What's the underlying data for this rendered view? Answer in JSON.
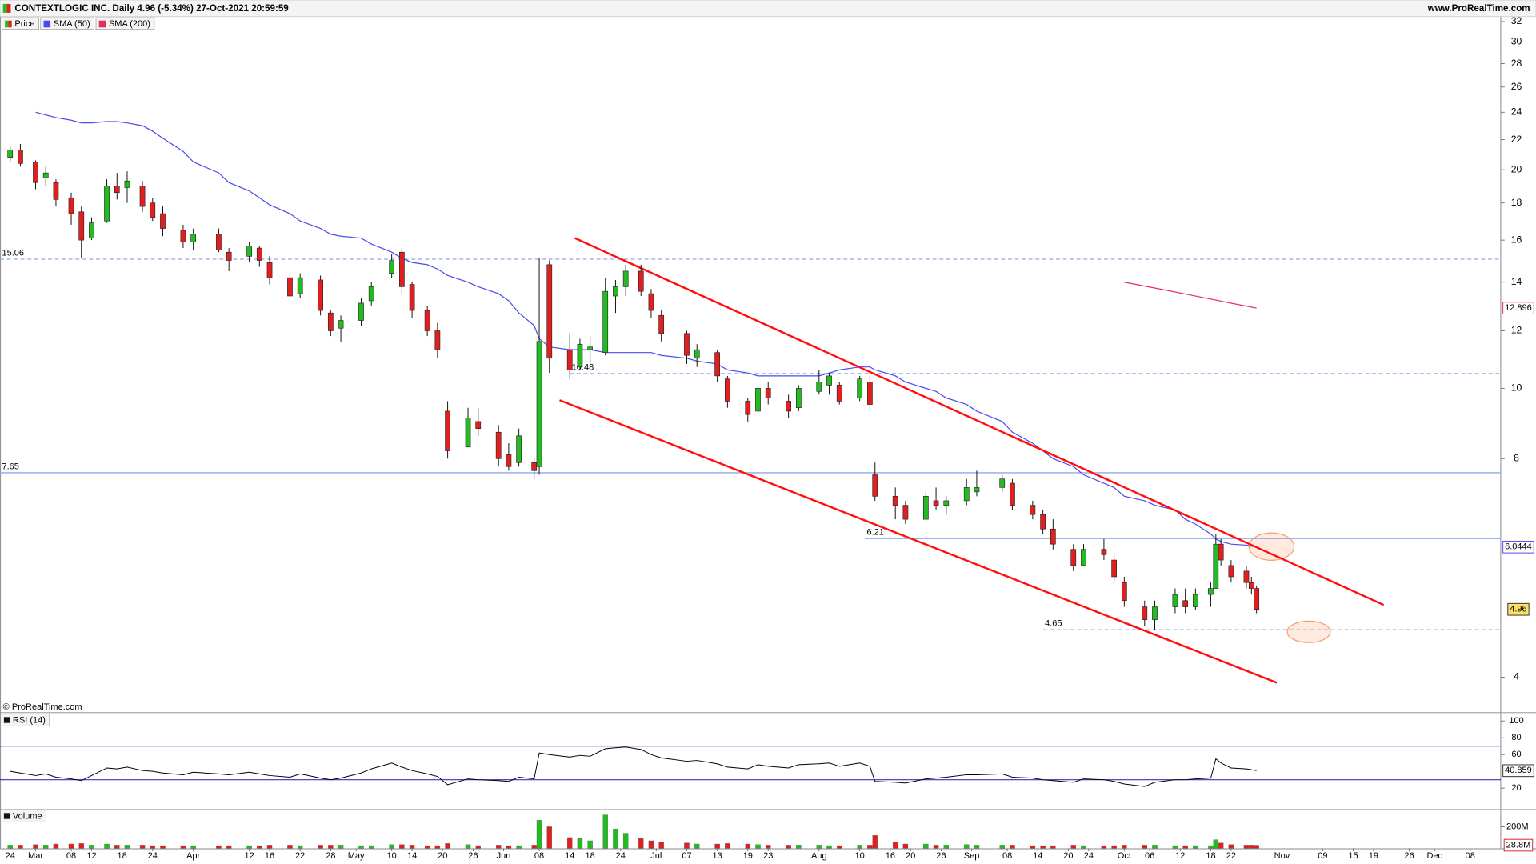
{
  "chart_data": {
    "type": "candlestick",
    "title": "CONTEXTLOGIC INC. Daily 4.96 (-5.34%) 27-Oct-2021 20:59:59",
    "source": "www.ProRealTime.com",
    "watermark": "© ProRealTime.com",
    "name": "Price",
    "up_color": "#22bb22",
    "down_color": "#e02020",
    "log_scale": true,
    "x": [
      "2021-02-24",
      "2021-02-26",
      "2021-03-01",
      "2021-03-03",
      "2021-03-05",
      "2021-03-08",
      "2021-03-10",
      "2021-03-12",
      "2021-03-15",
      "2021-03-17",
      "2021-03-19",
      "2021-03-22",
      "2021-03-24",
      "2021-03-26",
      "2021-03-30",
      "2021-04-01",
      "2021-04-06",
      "2021-04-08",
      "2021-04-12",
      "2021-04-14",
      "2021-04-16",
      "2021-04-20",
      "2021-04-22",
      "2021-04-26",
      "2021-04-28",
      "2021-04-30",
      "2021-05-04",
      "2021-05-06",
      "2021-05-10",
      "2021-05-12",
      "2021-05-14",
      "2021-05-17",
      "2021-05-19",
      "2021-05-21",
      "2021-05-25",
      "2021-05-27",
      "2021-05-31",
      "2021-06-02",
      "2021-06-04",
      "2021-06-07",
      "2021-06-08",
      "2021-06-10",
      "2021-06-14",
      "2021-06-16",
      "2021-06-18",
      "2021-06-21",
      "2021-06-23",
      "2021-06-25",
      "2021-06-28",
      "2021-06-30",
      "2021-07-02",
      "2021-07-07",
      "2021-07-09",
      "2021-07-13",
      "2021-07-15",
      "2021-07-19",
      "2021-07-21",
      "2021-07-23",
      "2021-07-27",
      "2021-07-29",
      "2021-08-02",
      "2021-08-04",
      "2021-08-06",
      "2021-08-10",
      "2021-08-12",
      "2021-08-13",
      "2021-08-17",
      "2021-08-19",
      "2021-08-23",
      "2021-08-25",
      "2021-08-27",
      "2021-08-31",
      "2021-09-02",
      "2021-09-07",
      "2021-09-09",
      "2021-09-13",
      "2021-09-15",
      "2021-09-17",
      "2021-09-21",
      "2021-09-23",
      "2021-09-27",
      "2021-09-29",
      "2021-10-01",
      "2021-10-05",
      "2021-10-07",
      "2021-10-11",
      "2021-10-13",
      "2021-10-15",
      "2021-10-18",
      "2021-10-19",
      "2021-10-20",
      "2021-10-22",
      "2021-10-25",
      "2021-10-26",
      "2021-10-27"
    ],
    "open": [
      20.8,
      21.3,
      20.5,
      19.5,
      19.2,
      18.3,
      17.5,
      16.1,
      17.0,
      19.0,
      18.9,
      19.0,
      18.0,
      17.4,
      16.5,
      15.9,
      16.3,
      15.4,
      15.2,
      15.6,
      14.9,
      14.2,
      13.5,
      14.1,
      12.7,
      12.1,
      12.4,
      13.2,
      14.4,
      15.4,
      13.9,
      12.8,
      12.0,
      9.3,
      8.3,
      9.0,
      8.7,
      8.1,
      7.9,
      7.9,
      7.8,
      14.8,
      11.3,
      10.7,
      11.3,
      11.2,
      13.4,
      13.8,
      14.5,
      13.5,
      12.6,
      11.9,
      11.0,
      11.2,
      10.3,
      9.6,
      9.3,
      10.0,
      9.6,
      9.4,
      9.9,
      10.1,
      10.1,
      9.7,
      10.2,
      7.6,
      7.1,
      6.9,
      6.6,
      7.0,
      6.9,
      7.0,
      7.2,
      7.3,
      7.4,
      6.9,
      6.7,
      6.4,
      6.0,
      5.7,
      6.0,
      5.8,
      5.4,
      5.0,
      4.8,
      5.0,
      5.1,
      5.0,
      5.2,
      5.3,
      6.1,
      5.7,
      5.6,
      5.4,
      5.3
    ],
    "high": [
      21.6,
      21.7,
      20.6,
      20.2,
      19.4,
      18.6,
      17.8,
      17.2,
      19.4,
      19.8,
      19.9,
      19.3,
      18.3,
      17.8,
      16.8,
      16.6,
      16.6,
      15.6,
      15.9,
      15.7,
      15.2,
      14.4,
      14.4,
      14.3,
      12.8,
      12.6,
      13.3,
      14.0,
      15.3,
      15.6,
      14.0,
      13.0,
      12.3,
      9.6,
      9.4,
      9.4,
      8.9,
      8.4,
      8.8,
      8.0,
      15.1,
      15.0,
      11.9,
      11.7,
      11.8,
      14.2,
      14.1,
      14.8,
      14.8,
      13.7,
      12.8,
      12.0,
      11.5,
      11.3,
      10.4,
      9.7,
      10.1,
      10.2,
      9.8,
      10.1,
      10.6,
      10.5,
      10.2,
      10.4,
      10.4,
      7.9,
      7.3,
      7.0,
      7.2,
      7.3,
      7.1,
      7.5,
      7.7,
      7.6,
      7.5,
      7.0,
      6.8,
      6.6,
      6.1,
      6.1,
      6.2,
      5.9,
      5.5,
      5.1,
      5.1,
      5.3,
      5.3,
      5.3,
      5.4,
      6.3,
      6.2,
      5.8,
      5.7,
      5.5,
      5.35
    ],
    "low": [
      20.5,
      20.2,
      18.8,
      19.0,
      17.8,
      16.8,
      15.1,
      16.0,
      16.9,
      18.2,
      18.0,
      17.5,
      17.0,
      16.2,
      15.6,
      15.5,
      15.4,
      14.5,
      14.9,
      14.7,
      13.9,
      13.1,
      13.3,
      12.6,
      11.8,
      11.6,
      12.2,
      13.0,
      14.2,
      13.5,
      12.5,
      11.8,
      11.0,
      8.0,
      8.3,
      8.6,
      7.8,
      7.7,
      7.8,
      7.5,
      7.6,
      10.5,
      10.3,
      10.6,
      10.8,
      11.1,
      12.7,
      13.4,
      13.4,
      12.5,
      11.6,
      10.8,
      10.7,
      10.2,
      9.4,
      9.0,
      9.2,
      9.5,
      9.1,
      9.3,
      9.8,
      9.8,
      9.5,
      9.6,
      9.3,
      7.0,
      6.6,
      6.5,
      6.6,
      6.8,
      6.7,
      6.9,
      7.1,
      7.2,
      6.8,
      6.6,
      6.3,
      6.0,
      5.6,
      5.7,
      5.8,
      5.4,
      5.0,
      4.7,
      4.65,
      4.9,
      4.9,
      4.95,
      5.0,
      5.3,
      5.7,
      5.4,
      5.3,
      5.2,
      4.9
    ],
    "close": [
      21.3,
      20.4,
      19.2,
      19.8,
      18.2,
      17.4,
      16.0,
      16.9,
      19.0,
      18.6,
      19.3,
      17.8,
      17.2,
      16.6,
      15.9,
      16.3,
      15.5,
      15.0,
      15.7,
      15.0,
      14.2,
      13.4,
      14.2,
      12.8,
      12.0,
      12.4,
      13.1,
      13.8,
      15.0,
      13.8,
      12.8,
      12.0,
      11.3,
      8.2,
      9.1,
      8.8,
      8.0,
      7.8,
      8.6,
      7.7,
      11.6,
      11.0,
      10.6,
      11.5,
      11.4,
      13.6,
      13.8,
      14.5,
      13.6,
      12.8,
      11.9,
      11.1,
      11.3,
      10.4,
      9.6,
      9.2,
      10.0,
      9.7,
      9.3,
      10.0,
      10.2,
      10.4,
      9.6,
      10.3,
      9.5,
      7.1,
      6.9,
      6.6,
      7.1,
      6.9,
      7.0,
      7.3,
      7.3,
      7.5,
      6.9,
      6.7,
      6.4,
      6.1,
      5.7,
      6.0,
      5.9,
      5.5,
      5.1,
      4.8,
      5.0,
      5.2,
      5.0,
      5.2,
      5.3,
      6.1,
      5.8,
      5.5,
      5.4,
      5.3,
      4.96
    ],
    "series": [
      {
        "name": "SMA (50)",
        "color": "#4a4af0",
        "values": [
          null,
          null,
          24.0,
          23.8,
          23.6,
          23.4,
          23.2,
          23.2,
          23.3,
          23.3,
          23.2,
          23.0,
          22.6,
          22.1,
          21.2,
          20.5,
          19.8,
          19.2,
          18.7,
          18.3,
          17.9,
          17.4,
          17.0,
          16.6,
          16.3,
          16.2,
          16.1,
          15.8,
          15.4,
          15.1,
          14.9,
          14.8,
          14.6,
          14.3,
          14.0,
          13.8,
          13.5,
          13.2,
          12.7,
          12.2,
          11.7,
          11.4,
          11.3,
          11.3,
          11.3,
          11.2,
          11.2,
          11.2,
          11.2,
          11.2,
          11.1,
          11.0,
          10.9,
          10.8,
          10.6,
          10.5,
          10.4,
          10.4,
          10.4,
          10.4,
          10.4,
          10.5,
          10.6,
          10.7,
          10.7,
          10.6,
          10.4,
          10.2,
          10.0,
          9.9,
          9.7,
          9.5,
          9.3,
          9.0,
          8.7,
          8.4,
          8.2,
          8.0,
          7.8,
          7.6,
          7.4,
          7.3,
          7.1,
          7.0,
          6.9,
          6.8,
          6.6,
          6.5,
          6.3,
          6.2,
          6.15,
          6.1,
          6.08,
          6.06,
          6.0444
        ]
      },
      {
        "name": "SMA (200)",
        "color": "#e0305a",
        "x": [
          "2021-10-01",
          "2021-10-08",
          "2021-10-15",
          "2021-10-22",
          "2021-10-27"
        ],
        "values": [
          14.0,
          13.7,
          13.4,
          13.1,
          12.896
        ]
      }
    ],
    "xlim": [
      "2021-02-22",
      "2021-12-14"
    ],
    "xticks": [
      {
        "value": "2021-02-24",
        "label": "24"
      },
      {
        "value": "2021-03-01",
        "label": "Mar"
      },
      {
        "value": "2021-03-08",
        "label": "08"
      },
      {
        "value": "2021-03-12",
        "label": "12"
      },
      {
        "value": "2021-03-18",
        "label": "18"
      },
      {
        "value": "2021-03-24",
        "label": "24"
      },
      {
        "value": "2021-04-01",
        "label": "Apr"
      },
      {
        "value": "2021-04-12",
        "label": "12"
      },
      {
        "value": "2021-04-16",
        "label": "16"
      },
      {
        "value": "2021-04-22",
        "label": "22"
      },
      {
        "value": "2021-04-28",
        "label": "28"
      },
      {
        "value": "2021-05-03",
        "label": "May"
      },
      {
        "value": "2021-05-10",
        "label": "10"
      },
      {
        "value": "2021-05-14",
        "label": "14"
      },
      {
        "value": "2021-05-20",
        "label": "20"
      },
      {
        "value": "2021-05-26",
        "label": "26"
      },
      {
        "value": "2021-06-01",
        "label": "Jun"
      },
      {
        "value": "2021-06-08",
        "label": "08"
      },
      {
        "value": "2021-06-14",
        "label": "14"
      },
      {
        "value": "2021-06-18",
        "label": "18"
      },
      {
        "value": "2021-06-24",
        "label": "24"
      },
      {
        "value": "2021-07-01",
        "label": "Jul"
      },
      {
        "value": "2021-07-07",
        "label": "07"
      },
      {
        "value": "2021-07-13",
        "label": "13"
      },
      {
        "value": "2021-07-19",
        "label": "19"
      },
      {
        "value": "2021-07-23",
        "label": "23"
      },
      {
        "value": "2021-08-02",
        "label": "Aug"
      },
      {
        "value": "2021-08-10",
        "label": "10"
      },
      {
        "value": "2021-08-16",
        "label": "16"
      },
      {
        "value": "2021-08-20",
        "label": "20"
      },
      {
        "value": "2021-08-26",
        "label": "26"
      },
      {
        "value": "2021-09-01",
        "label": "Sep"
      },
      {
        "value": "2021-09-08",
        "label": "08"
      },
      {
        "value": "2021-09-14",
        "label": "14"
      },
      {
        "value": "2021-09-20",
        "label": "20"
      },
      {
        "value": "2021-09-24",
        "label": "24"
      },
      {
        "value": "2021-10-01",
        "label": "Oct"
      },
      {
        "value": "2021-10-06",
        "label": "06"
      },
      {
        "value": "2021-10-12",
        "label": "12"
      },
      {
        "value": "2021-10-18",
        "label": "18"
      },
      {
        "value": "2021-10-22",
        "label": "22"
      },
      {
        "value": "2021-11-01",
        "label": "Nov"
      },
      {
        "value": "2021-11-09",
        "label": "09"
      },
      {
        "value": "2021-11-15",
        "label": "15"
      },
      {
        "value": "2021-11-19",
        "label": "19"
      },
      {
        "value": "2021-11-26",
        "label": "26"
      },
      {
        "value": "2021-12-01",
        "label": "Dec"
      },
      {
        "value": "2021-12-08",
        "label": "08"
      }
    ],
    "ylim": [
      3.58,
      32.5
    ],
    "yticks": [
      4,
      8,
      10,
      12,
      14,
      16,
      18,
      20,
      22,
      24,
      26,
      28,
      30,
      32
    ],
    "levels": [
      {
        "value": 15.06,
        "style": "dashed",
        "from": "2021-02-22"
      },
      {
        "value": 10.48,
        "style": "dashed",
        "from": "2021-06-14"
      },
      {
        "value": 7.65,
        "style": "solid",
        "from": "2021-02-22"
      },
      {
        "value": 6.21,
        "style": "solid",
        "from": "2021-08-11"
      },
      {
        "value": 4.65,
        "style": "dashed",
        "from": "2021-09-15"
      }
    ],
    "trendlines": [
      {
        "from": [
          "2021-06-15",
          16.1
        ],
        "to": [
          "2021-11-21",
          5.03
        ]
      },
      {
        "from": [
          "2021-06-12",
          9.63
        ],
        "to": [
          "2021-10-31",
          3.93
        ]
      }
    ],
    "rsi": {
      "name": "RSI (14)",
      "color": "#000000",
      "values": [
        40,
        38,
        35,
        37,
        33,
        31,
        29,
        35,
        44,
        43,
        45,
        41,
        40,
        38,
        36,
        39,
        37,
        36,
        39,
        37,
        35,
        33,
        37,
        32,
        30,
        32,
        38,
        43,
        50,
        45,
        41,
        37,
        34,
        24,
        31,
        30,
        29,
        28,
        33,
        31,
        62,
        60,
        57,
        59,
        58,
        67,
        68,
        69,
        66,
        60,
        56,
        52,
        53,
        49,
        45,
        43,
        48,
        46,
        44,
        48,
        49,
        50,
        46,
        50,
        46,
        28,
        27,
        26,
        31,
        32,
        33,
        36,
        36,
        37,
        33,
        32,
        30,
        29,
        27,
        31,
        30,
        28,
        25,
        22,
        27,
        30,
        30,
        31,
        32,
        55,
        50,
        44,
        43,
        42,
        40.859
      ],
      "ylim": [
        -5,
        107
      ],
      "yticks": [
        20,
        60,
        80,
        100
      ],
      "levels": [
        30,
        70
      ]
    },
    "volume": {
      "name": "Volume",
      "values": [
        30,
        30,
        35,
        30,
        40,
        40,
        45,
        30,
        40,
        30,
        30,
        30,
        25,
        25,
        25,
        25,
        25,
        25,
        25,
        25,
        30,
        30,
        25,
        30,
        30,
        30,
        25,
        25,
        35,
        35,
        30,
        25,
        25,
        45,
        35,
        25,
        30,
        25,
        25,
        30,
        260,
        200,
        100,
        90,
        70,
        310,
        180,
        140,
        90,
        70,
        60,
        50,
        40,
        40,
        45,
        40,
        35,
        30,
        30,
        30,
        30,
        25,
        25,
        30,
        30,
        120,
        60,
        40,
        40,
        30,
        30,
        35,
        30,
        30,
        30,
        25,
        25,
        25,
        30,
        25,
        25,
        25,
        30,
        30,
        30,
        25,
        25,
        25,
        25,
        80,
        50,
        35,
        30,
        30,
        28.8
      ],
      "ylim": [
        0,
        345
      ],
      "yticks": [
        {
          "value": 200,
          "label": "200M"
        }
      ],
      "last_label": {
        "value": 28.8,
        "label": "28.8M"
      }
    }
  }
}
